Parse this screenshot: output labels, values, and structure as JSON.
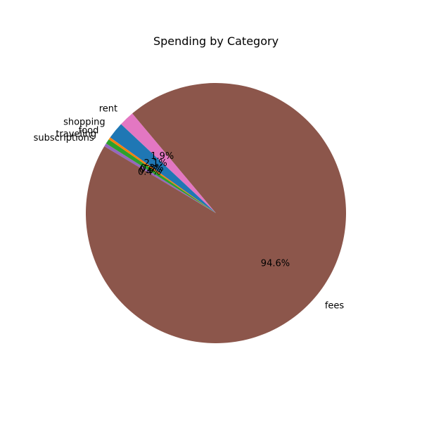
{
  "chart_data": {
    "type": "pie",
    "title": "Spending by Category",
    "start_angle_deg": 130,
    "direction": "counterclockwise",
    "slices": [
      {
        "label": "rent",
        "value": 1.9,
        "pct_label": "1.9%",
        "color": "#e377c2"
      },
      {
        "label": "shopping",
        "value": 2.1,
        "pct_label": "2.1%",
        "color": "#1f77b4"
      },
      {
        "label": "food",
        "value": 0.3,
        "pct_label": "0.3%",
        "color": "#ff7f0e"
      },
      {
        "label": "traveling",
        "value": 0.6,
        "pct_label": "0.6%",
        "color": "#2ca02c"
      },
      {
        "label": "subscriptions",
        "value": 0.4,
        "pct_label": "0.4%",
        "color": "#9467bd"
      },
      {
        "label": "fees",
        "value": 94.6,
        "pct_label": "94.6%",
        "color": "#8c564b"
      }
    ]
  }
}
